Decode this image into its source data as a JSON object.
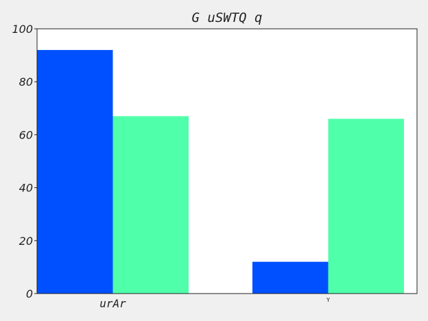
{
  "chart_data": {
    "type": "bar",
    "title": "G uSWTQ q",
    "xlabel": "",
    "ylabel": "",
    "categories": [
      "urAr",
      "Y"
    ],
    "series": [
      {
        "color": "#0050ff",
        "values": [
          92,
          12
        ]
      },
      {
        "color": "#50ffaa",
        "values": [
          67,
          66
        ]
      }
    ],
    "ylim": [
      0,
      100
    ],
    "yticks": [
      0,
      20,
      40,
      60,
      80,
      100
    ],
    "grid": false,
    "legend": "none"
  }
}
